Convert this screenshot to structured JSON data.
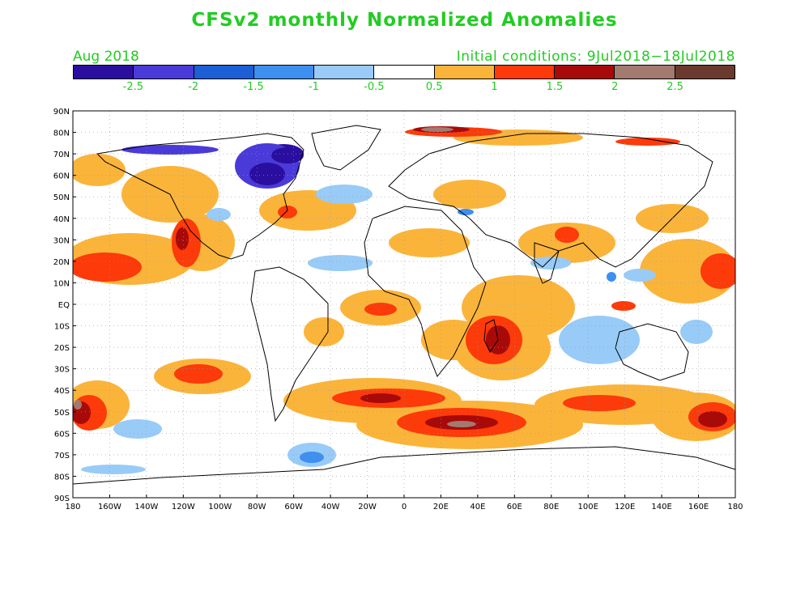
{
  "title": "CFSv2 monthly Normalized Anomalies",
  "month": "Aug 2018",
  "initial_conditions": "Initial conditions: 9Jul2018−18Jul2018",
  "colorbar": {
    "colors": [
      "#2a0ea0",
      "#4a3ad8",
      "#1c5fd6",
      "#3d8ff0",
      "#98cbf7",
      "#ffffff",
      "#fbb43a",
      "#fc3a0a",
      "#a80a0a",
      "#a27a70",
      "#6b3a2e"
    ],
    "labels": [
      "-2.5",
      "-2",
      "-1.5",
      "-1",
      "-0.5",
      "0.5",
      "1",
      "1.5",
      "2",
      "2.5"
    ]
  },
  "axes": {
    "lat_labels": [
      "90N",
      "80N",
      "70N",
      "60N",
      "50N",
      "40N",
      "30N",
      "20N",
      "10N",
      "EQ",
      "10S",
      "20S",
      "30S",
      "40S",
      "50S",
      "60S",
      "70S",
      "80S",
      "90S"
    ],
    "lon_labels": [
      "180",
      "160W",
      "140W",
      "120W",
      "100W",
      "80W",
      "60W",
      "40W",
      "20W",
      "0",
      "20E",
      "40E",
      "60E",
      "80E",
      "100E",
      "120E",
      "140E",
      "160E",
      "180"
    ]
  }
}
